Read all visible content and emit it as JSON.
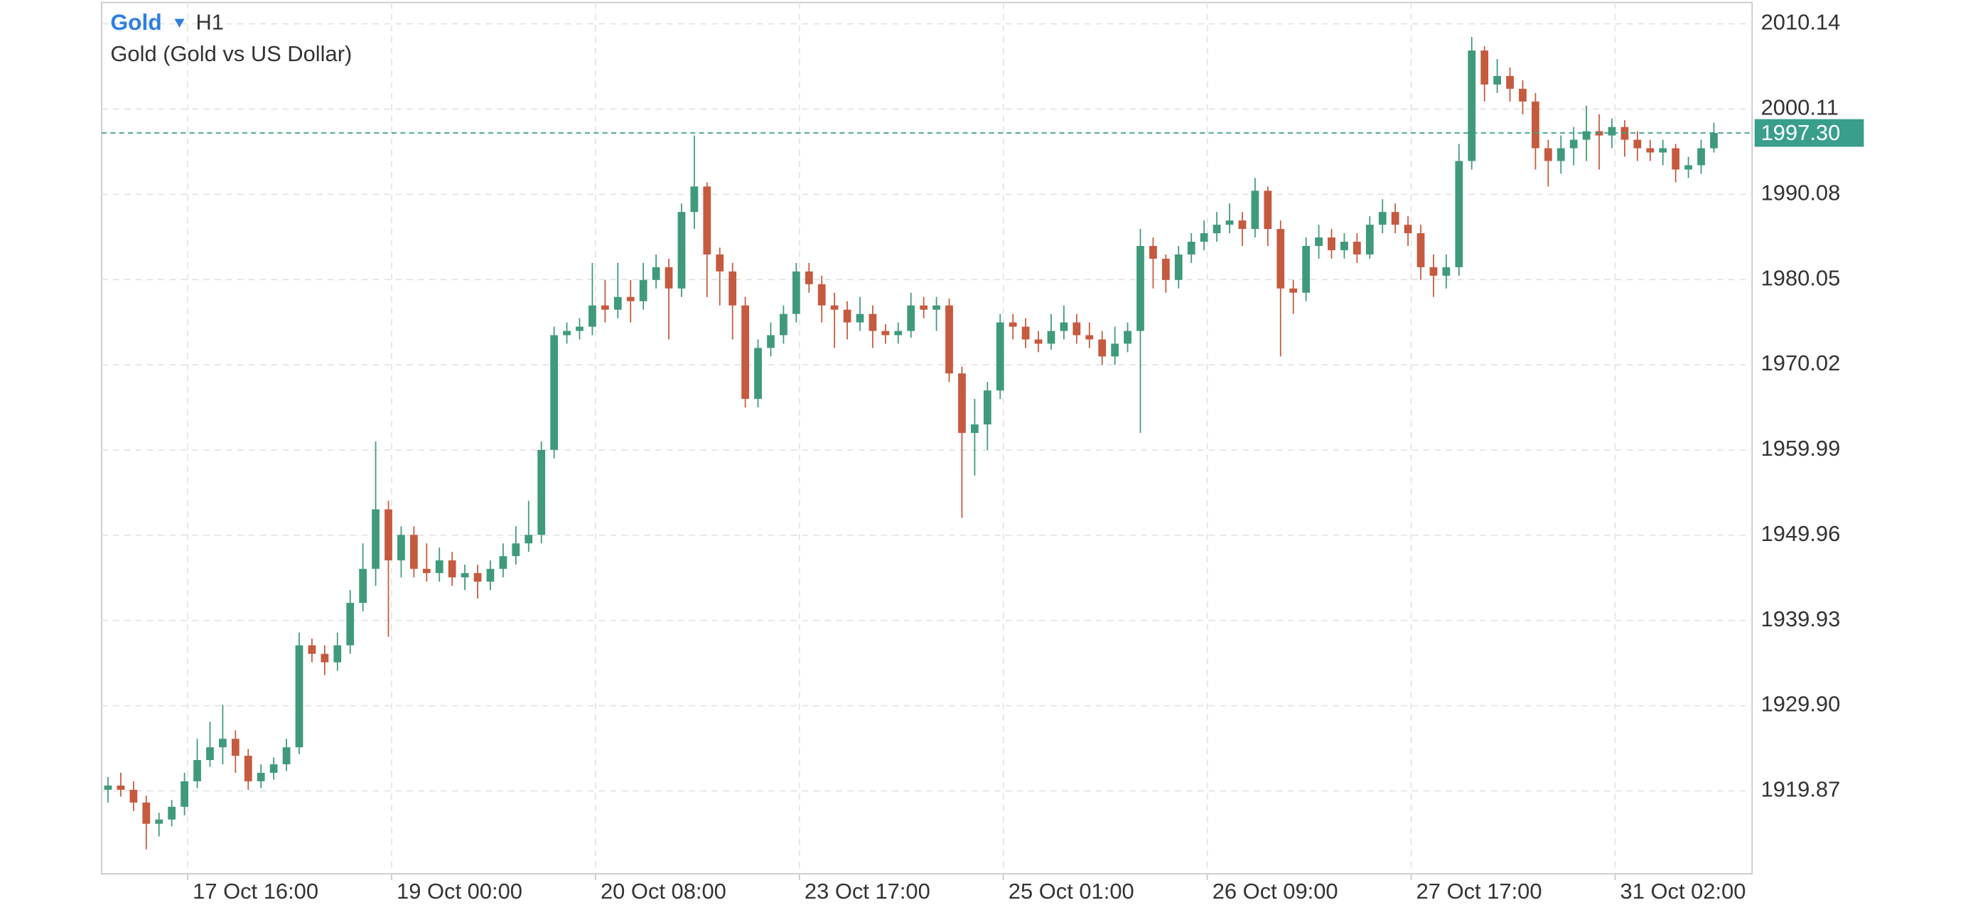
{
  "chart_data": {
    "type": "candlestick",
    "symbol": "Gold",
    "timeframe": "H1",
    "title": "Gold (Gold vs US Dollar)",
    "x": [
      1,
      3,
      5,
      7,
      9,
      11,
      13,
      15,
      17,
      19,
      21,
      23,
      25,
      27,
      29,
      31,
      33,
      35,
      37,
      39,
      41,
      43,
      45,
      47,
      49,
      51,
      53,
      55,
      57,
      59,
      61,
      63,
      65,
      67,
      69,
      71,
      73,
      75,
      77,
      79,
      81,
      83,
      85,
      87,
      89,
      91,
      93,
      95,
      97,
      99,
      101,
      103,
      105,
      107,
      109,
      111,
      113,
      115,
      117,
      119,
      121,
      123,
      125,
      127,
      129,
      131,
      133,
      135,
      137,
      139,
      141,
      143,
      145,
      147,
      149,
      151,
      153,
      155,
      157,
      159,
      161,
      163,
      165,
      167,
      169,
      171,
      173,
      175,
      177,
      179,
      181,
      183,
      185,
      187,
      189,
      191,
      193,
      195,
      197,
      199,
      201,
      203,
      205,
      207,
      209,
      211,
      213,
      215,
      217,
      219,
      221,
      223,
      225,
      227,
      229,
      231,
      233,
      235,
      237,
      239,
      241,
      243,
      245,
      247,
      249,
      251,
      253
    ],
    "open": [
      1920,
      1920.5,
      1920,
      1918.5,
      1916,
      1916.5,
      1918,
      1921,
      1923.5,
      1925,
      1926,
      1924,
      1921,
      1922,
      1923,
      1925,
      1937,
      1936,
      1935,
      1937,
      1942,
      1946,
      1953,
      1947,
      1950,
      1946,
      1945.5,
      1947,
      1945,
      1945.5,
      1944.5,
      1946,
      1947.5,
      1949,
      1950,
      1960,
      1973.5,
      1974,
      1974.5,
      1977,
      1976.5,
      1978,
      1977.5,
      1980,
      1981.5,
      1979,
      1988,
      1991,
      1983,
      1981,
      1977,
      1966,
      1972,
      1973.5,
      1976,
      1981,
      1979.5,
      1977,
      1976.5,
      1975,
      1976,
      1974,
      1973.5,
      1974,
      1977,
      1976.5,
      1977,
      1969,
      1962,
      1963,
      1967,
      1975,
      1974.5,
      1973,
      1972.5,
      1974,
      1975,
      1973.5,
      1973,
      1971,
      1972.5,
      1974,
      1984,
      1982.5,
      1980,
      1983,
      1984.5,
      1985.5,
      1986.5,
      1987,
      1986,
      1990.5,
      1986,
      1979,
      1978.5,
      1984,
      1985,
      1983.5,
      1984.5,
      1983,
      1986.5,
      1988,
      1986.5,
      1985.5,
      1981.5,
      1980.5,
      1981.5,
      1994,
      2007,
      2003,
      2004,
      2002.5,
      2001,
      1995.5,
      1994,
      1995.5,
      1996.5,
      1997.5,
      1997,
      1998,
      1996.5,
      1995.5,
      1995,
      1995.5,
      1993,
      1993.5,
      1995.5
    ],
    "high": [
      1921.5,
      1922,
      1921,
      1919.3,
      1917.3,
      1918.8,
      1922,
      1926,
      1928,
      1930,
      1927,
      1924.8,
      1923,
      1923.8,
      1926,
      1938.5,
      1937.8,
      1937,
      1938.5,
      1943.5,
      1949,
      1961,
      1954,
      1951,
      1951,
      1949,
      1948.5,
      1948,
      1946.5,
      1946.5,
      1947,
      1949,
      1951,
      1954,
      1961,
      1974.5,
      1975,
      1975.5,
      1982,
      1980,
      1982,
      1980,
      1982,
      1983,
      1982.5,
      1989,
      1997,
      1991.5,
      1983.8,
      1982,
      1978,
      1973,
      1975,
      1977,
      1982,
      1982,
      1980.5,
      1978.5,
      1977.5,
      1978,
      1977,
      1974.8,
      1975,
      1978.5,
      1978,
      1978,
      1977.8,
      1969.8,
      1966,
      1968,
      1976,
      1976,
      1975.5,
      1974,
      1976,
      1977,
      1976,
      1975,
      1974,
      1974.5,
      1975,
      1986,
      1985,
      1983,
      1984,
      1985.5,
      1987,
      1988,
      1989,
      1988,
      1992,
      1991,
      1987,
      1980,
      1985,
      1986.5,
      1986,
      1985.5,
      1985.5,
      1987.5,
      1989.5,
      1989,
      1987.5,
      1986.5,
      1983,
      1983,
      1996,
      2008.6,
      2007.5,
      2006,
      2005,
      2003.5,
      2002,
      1996.5,
      1997,
      1998,
      2000.5,
      1999.5,
      1999,
      1998.8,
      1997.5,
      1996.5,
      1996.5,
      1996,
      1994.5,
      1996.5,
      1998.5
    ],
    "low": [
      1918.5,
      1919.2,
      1917.5,
      1913,
      1914.5,
      1915.7,
      1917,
      1920.2,
      1922.7,
      1923,
      1922,
      1920,
      1920.2,
      1921.2,
      1922.2,
      1924.2,
      1935,
      1933.5,
      1934,
      1936,
      1941,
      1944,
      1938,
      1945,
      1945,
      1944.5,
      1944.5,
      1944,
      1943.5,
      1942.5,
      1943.5,
      1945,
      1946.5,
      1948,
      1949,
      1959,
      1972.5,
      1973,
      1973.5,
      1975,
      1975.5,
      1975,
      1976.5,
      1979,
      1973,
      1978,
      1986,
      1978,
      1977,
      1973,
      1965,
      1965,
      1971,
      1972.5,
      1975,
      1978.5,
      1975,
      1972,
      1973,
      1974,
      1972,
      1972.5,
      1972.5,
      1973.2,
      1975.5,
      1974,
      1968,
      1952,
      1957,
      1960,
      1966,
      1973,
      1972,
      1971.5,
      1971.8,
      1973,
      1972.5,
      1972,
      1970,
      1970,
      1971.5,
      1962,
      1979,
      1978.5,
      1979,
      1982,
      1983.5,
      1984.5,
      1985.5,
      1984,
      1985,
      1984,
      1971,
      1976,
      1977.5,
      1982.5,
      1982.5,
      1982.5,
      1982,
      1982.5,
      1985.5,
      1985.5,
      1984,
      1980,
      1978,
      1979,
      1980.5,
      1993,
      2001,
      2002,
      2001,
      1999.5,
      1993,
      1991,
      1992.5,
      1993.5,
      1994,
      1993,
      1995.5,
      1994.5,
      1994,
      1994,
      1993.5,
      1991.5,
      1992,
      1992.5,
      1995
    ],
    "close": [
      1920.5,
      1920,
      1918.5,
      1916,
      1916.5,
      1918,
      1921,
      1923.5,
      1925,
      1926,
      1924,
      1921,
      1922,
      1923,
      1925,
      1937,
      1936,
      1935,
      1937,
      1942,
      1946,
      1953,
      1947,
      1950,
      1946,
      1945.5,
      1947,
      1945,
      1945.5,
      1944.5,
      1946,
      1947.5,
      1949,
      1950,
      1960,
      1973.5,
      1974,
      1974.5,
      1977,
      1976.5,
      1978,
      1977.5,
      1980,
      1981.5,
      1979,
      1988,
      1991,
      1983,
      1981,
      1977,
      1966,
      1972,
      1973.5,
      1976,
      1981,
      1979.5,
      1977,
      1976.5,
      1975,
      1976,
      1974,
      1973.5,
      1974,
      1977,
      1976.5,
      1977,
      1969,
      1962,
      1963,
      1967,
      1975,
      1974.5,
      1973,
      1972.5,
      1974,
      1975,
      1973.5,
      1973,
      1971,
      1972.5,
      1974,
      1984,
      1982.5,
      1980,
      1983,
      1984.5,
      1985.5,
      1986.5,
      1987,
      1986,
      1990.5,
      1986,
      1979,
      1978.5,
      1984,
      1985,
      1983.5,
      1984.5,
      1983,
      1986.5,
      1988,
      1986.5,
      1985.5,
      1981.5,
      1980.5,
      1981.5,
      1994,
      2007,
      2003,
      2004,
      2002.5,
      2001,
      1995.5,
      1994,
      1995.5,
      1996.5,
      1997.5,
      1997,
      1998,
      1996.5,
      1995.5,
      1995,
      1995.5,
      1993,
      1993.5,
      1995.5,
      1997.3
    ],
    "xlim": [
      0,
      259
    ],
    "xticks": [
      {
        "value": 13.5,
        "label": "17 Oct 16:00"
      },
      {
        "value": 45.5,
        "label": "19 Oct 00:00"
      },
      {
        "value": 77.5,
        "label": "20 Oct 08:00"
      },
      {
        "value": 109.5,
        "label": "23 Oct 17:00"
      },
      {
        "value": 141.5,
        "label": "25 Oct 01:00"
      },
      {
        "value": 173.5,
        "label": "26 Oct 09:00"
      },
      {
        "value": 205.5,
        "label": "27 Oct 17:00"
      },
      {
        "value": 237.5,
        "label": "31 Oct 02:00"
      }
    ],
    "ylim": [
      1910.11,
      2012.65
    ],
    "yticks": [
      2010.14,
      2000.11,
      1990.08,
      1980.05,
      1970.02,
      1959.99,
      1949.96,
      1939.93,
      {
        "value": 1929.9,
        "label": "1929.90"
      },
      1919.87
    ],
    "grid": true,
    "up_color": "#3f9a7c",
    "down_color": "#c55a3e",
    "last_price": {
      "value": 1997.3,
      "label": "1997.30"
    },
    "last_price_color": "#3a9e8c"
  }
}
